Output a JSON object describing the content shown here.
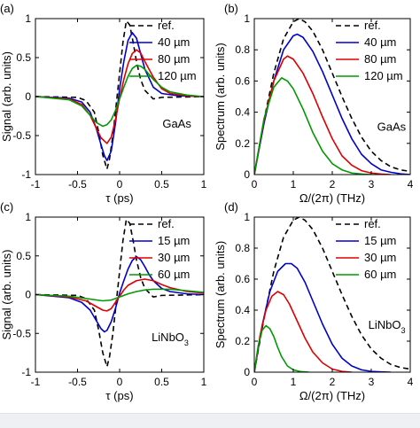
{
  "chart_data": [
    {
      "id": "a",
      "panel_label": "(a)",
      "type": "line",
      "xlabel": "τ (ps)",
      "ylabel": "Signal (arb. units)",
      "xlim": [
        -1,
        1
      ],
      "ylim": [
        -1,
        1
      ],
      "xticks": [
        -1,
        -0.5,
        0,
        0.5,
        1
      ],
      "xtick_labels": [
        "-1",
        "-0.5",
        "0",
        "0.5",
        "1"
      ],
      "yticks": [
        -1,
        -0.5,
        0,
        0.5,
        1
      ],
      "ytick_labels": [
        "-1",
        "-0.5",
        "0",
        "0.5",
        "1"
      ],
      "annotation": "GaAs",
      "legend_position": "top-right",
      "series": [
        {
          "name": "ref.",
          "color": "#000000",
          "dashed": true,
          "x": [
            -1.0,
            -0.5,
            -0.4,
            -0.3,
            -0.25,
            -0.2,
            -0.15,
            -0.12,
            -0.08,
            -0.04,
            0.0,
            0.04,
            0.08,
            0.12,
            0.16,
            0.2,
            0.25,
            0.3,
            0.4,
            0.5,
            1.0
          ],
          "y": [
            0.0,
            -0.01,
            -0.05,
            -0.2,
            -0.45,
            -0.75,
            -0.93,
            -0.8,
            -0.5,
            -0.1,
            0.3,
            0.7,
            0.97,
            0.92,
            0.7,
            0.45,
            0.22,
            0.08,
            -0.03,
            -0.01,
            0.0
          ]
        },
        {
          "name": "40 µm",
          "color": "#0000cc",
          "dashed": false,
          "x": [
            -1.0,
            -0.6,
            -0.45,
            -0.35,
            -0.28,
            -0.22,
            -0.18,
            -0.15,
            -0.1,
            -0.05,
            0.0,
            0.05,
            0.1,
            0.15,
            0.2,
            0.25,
            0.3,
            0.4,
            0.5,
            0.7,
            1.0
          ],
          "y": [
            0.0,
            -0.02,
            -0.07,
            -0.2,
            -0.4,
            -0.62,
            -0.76,
            -0.82,
            -0.7,
            -0.35,
            0.1,
            0.45,
            0.72,
            0.82,
            0.75,
            0.55,
            0.35,
            0.12,
            0.04,
            0.01,
            0.0
          ]
        },
        {
          "name": "80 µm",
          "color": "#dd0000",
          "dashed": false,
          "x": [
            -1.0,
            -0.6,
            -0.45,
            -0.35,
            -0.28,
            -0.22,
            -0.15,
            -0.1,
            -0.05,
            0.0,
            0.05,
            0.1,
            0.15,
            0.2,
            0.25,
            0.3,
            0.4,
            0.5,
            0.6,
            0.8,
            1.0
          ],
          "y": [
            0.0,
            -0.03,
            -0.1,
            -0.24,
            -0.4,
            -0.53,
            -0.6,
            -0.52,
            -0.3,
            -0.02,
            0.22,
            0.42,
            0.55,
            0.6,
            0.56,
            0.45,
            0.25,
            0.1,
            0.04,
            0.01,
            0.0
          ]
        },
        {
          "name": "120 µm",
          "color": "#009900",
          "dashed": false,
          "x": [
            -1.0,
            -0.6,
            -0.45,
            -0.35,
            -0.28,
            -0.2,
            -0.15,
            -0.1,
            -0.05,
            0.0,
            0.05,
            0.1,
            0.15,
            0.2,
            0.25,
            0.3,
            0.4,
            0.5,
            0.6,
            0.8,
            1.0
          ],
          "y": [
            0.0,
            -0.04,
            -0.12,
            -0.24,
            -0.33,
            -0.38,
            -0.36,
            -0.3,
            -0.18,
            -0.03,
            0.12,
            0.26,
            0.36,
            0.4,
            0.39,
            0.35,
            0.22,
            0.12,
            0.06,
            0.02,
            0.0
          ]
        }
      ]
    },
    {
      "id": "b",
      "panel_label": "(b)",
      "type": "line",
      "xlabel": "Ω/(2π) (THz)",
      "ylabel": "Spectrum (arb. units)",
      "xlim": [
        0,
        4
      ],
      "ylim": [
        0,
        1
      ],
      "xticks": [
        0,
        1,
        2,
        3,
        4
      ],
      "xtick_labels": [
        "0",
        "1",
        "2",
        "3",
        "4"
      ],
      "yticks": [
        0,
        0.2,
        0.4,
        0.6,
        0.8,
        1
      ],
      "ytick_labels": [
        "0",
        "0.2",
        "0.4",
        "0.6",
        "0.8",
        "1"
      ],
      "annotation": "GaAs",
      "legend_position": "top-right",
      "series": [
        {
          "name": "ref.",
          "color": "#000000",
          "dashed": true,
          "x": [
            0,
            0.25,
            0.5,
            0.75,
            1.0,
            1.15,
            1.3,
            1.5,
            1.75,
            2.0,
            2.25,
            2.5,
            2.75,
            3.0,
            3.25,
            3.5,
            3.75,
            4.0
          ],
          "y": [
            0.0,
            0.35,
            0.65,
            0.87,
            0.98,
            1.0,
            0.98,
            0.92,
            0.8,
            0.65,
            0.5,
            0.36,
            0.24,
            0.15,
            0.09,
            0.05,
            0.03,
            0.02
          ]
        },
        {
          "name": "40 µm",
          "color": "#0000cc",
          "dashed": false,
          "x": [
            0,
            0.25,
            0.5,
            0.75,
            1.0,
            1.1,
            1.25,
            1.5,
            1.75,
            2.0,
            2.25,
            2.5,
            2.75,
            3.0,
            3.25,
            3.5,
            3.75,
            4.0
          ],
          "y": [
            0.0,
            0.33,
            0.6,
            0.8,
            0.89,
            0.9,
            0.88,
            0.79,
            0.66,
            0.51,
            0.36,
            0.23,
            0.13,
            0.07,
            0.03,
            0.015,
            0.005,
            0.0
          ]
        },
        {
          "name": "80 µm",
          "color": "#dd0000",
          "dashed": false,
          "x": [
            0,
            0.25,
            0.5,
            0.75,
            0.85,
            1.0,
            1.25,
            1.5,
            1.75,
            2.0,
            2.25,
            2.5,
            2.75,
            3.0,
            3.25,
            3.5
          ],
          "y": [
            0.0,
            0.35,
            0.6,
            0.74,
            0.76,
            0.74,
            0.65,
            0.52,
            0.37,
            0.23,
            0.12,
            0.06,
            0.025,
            0.01,
            0.003,
            0.0
          ]
        },
        {
          "name": "120 µm",
          "color": "#009900",
          "dashed": false,
          "x": [
            0,
            0.25,
            0.5,
            0.7,
            0.85,
            1.0,
            1.25,
            1.5,
            1.75,
            2.0,
            2.25,
            2.5,
            2.75,
            3.0
          ],
          "y": [
            0.0,
            0.36,
            0.56,
            0.62,
            0.6,
            0.55,
            0.42,
            0.27,
            0.15,
            0.07,
            0.03,
            0.01,
            0.003,
            0.0
          ]
        }
      ]
    },
    {
      "id": "c",
      "panel_label": "(c)",
      "type": "line",
      "xlabel": "τ (ps)",
      "ylabel": "Signal (arb. units)",
      "xlim": [
        -1,
        1
      ],
      "ylim": [
        -1,
        1
      ],
      "xticks": [
        -1,
        -0.5,
        0,
        0.5,
        1
      ],
      "xtick_labels": [
        "-1",
        "-0.5",
        "0",
        "0.5",
        "1"
      ],
      "yticks": [
        -1,
        -0.5,
        0,
        0.5,
        1
      ],
      "ytick_labels": [
        "-1",
        "-0.5",
        "0",
        "0.5",
        "1"
      ],
      "annotation": "LiNbO",
      "annotation_subscript": "3",
      "legend_position": "top-right",
      "series": [
        {
          "name": "ref.",
          "color": "#000000",
          "dashed": true,
          "x": [
            -1.0,
            -0.5,
            -0.4,
            -0.3,
            -0.25,
            -0.2,
            -0.15,
            -0.12,
            -0.08,
            -0.04,
            0.0,
            0.04,
            0.08,
            0.12,
            0.16,
            0.2,
            0.25,
            0.3,
            0.4,
            0.5,
            1.0
          ],
          "y": [
            0.0,
            -0.01,
            -0.05,
            -0.2,
            -0.45,
            -0.75,
            -0.93,
            -0.8,
            -0.5,
            -0.1,
            0.3,
            0.7,
            0.97,
            0.92,
            0.7,
            0.45,
            0.22,
            0.08,
            -0.03,
            -0.01,
            0.0
          ]
        },
        {
          "name": "15 µm",
          "color": "#0000cc",
          "dashed": false,
          "x": [
            -1.0,
            -0.6,
            -0.45,
            -0.35,
            -0.28,
            -0.22,
            -0.18,
            -0.15,
            -0.1,
            -0.05,
            0.0,
            0.05,
            0.1,
            0.15,
            0.2,
            0.25,
            0.3,
            0.35,
            0.4,
            0.5,
            0.6,
            0.8,
            1.0
          ],
          "y": [
            0.0,
            -0.04,
            -0.1,
            -0.2,
            -0.33,
            -0.44,
            -0.48,
            -0.46,
            -0.35,
            -0.18,
            0.02,
            0.18,
            0.33,
            0.44,
            0.49,
            0.45,
            0.36,
            0.26,
            0.18,
            0.08,
            0.04,
            0.01,
            0.0
          ]
        },
        {
          "name": "30 µm",
          "color": "#dd0000",
          "dashed": false,
          "x": [
            -1.0,
            -0.6,
            -0.4,
            -0.3,
            -0.2,
            -0.15,
            -0.1,
            -0.05,
            0.0,
            0.05,
            0.1,
            0.2,
            0.3,
            0.4,
            0.5,
            0.6,
            0.8,
            1.0
          ],
          "y": [
            0.0,
            -0.03,
            -0.08,
            -0.14,
            -0.2,
            -0.21,
            -0.18,
            -0.1,
            -0.02,
            0.06,
            0.12,
            0.18,
            0.2,
            0.18,
            0.13,
            0.09,
            0.04,
            0.02
          ]
        },
        {
          "name": "60 µm",
          "color": "#009900",
          "dashed": false,
          "x": [
            -1.0,
            -0.6,
            -0.4,
            -0.2,
            -0.1,
            0.0,
            0.1,
            0.2,
            0.3,
            0.4,
            0.6,
            0.8,
            1.0
          ],
          "y": [
            0.0,
            -0.02,
            -0.05,
            -0.08,
            -0.07,
            -0.03,
            0.01,
            0.04,
            0.06,
            0.07,
            0.07,
            0.05,
            0.03
          ]
        }
      ]
    },
    {
      "id": "d",
      "panel_label": "(d)",
      "type": "line",
      "xlabel": "Ω/(2π) (THz)",
      "ylabel": "Spectrum (arb. units)",
      "xlim": [
        0,
        4
      ],
      "ylim": [
        0,
        1
      ],
      "xticks": [
        0,
        1,
        2,
        3,
        4
      ],
      "xtick_labels": [
        "0",
        "1",
        "2",
        "3",
        "4"
      ],
      "yticks": [
        0,
        0.2,
        0.4,
        0.6,
        0.8,
        1
      ],
      "ytick_labels": [
        "0",
        "0.2",
        "0.4",
        "0.6",
        "0.8",
        "1"
      ],
      "annotation": "LiNbO",
      "annotation_subscript": "3",
      "legend_position": "top-right",
      "series": [
        {
          "name": "ref.",
          "color": "#000000",
          "dashed": true,
          "x": [
            0,
            0.25,
            0.5,
            0.75,
            1.0,
            1.15,
            1.3,
            1.5,
            1.75,
            2.0,
            2.25,
            2.5,
            2.75,
            3.0,
            3.25,
            3.5,
            3.75,
            4.0
          ],
          "y": [
            0.0,
            0.35,
            0.65,
            0.87,
            0.98,
            1.0,
            0.98,
            0.92,
            0.8,
            0.65,
            0.5,
            0.36,
            0.24,
            0.15,
            0.09,
            0.05,
            0.03,
            0.02
          ]
        },
        {
          "name": "15 µm",
          "color": "#0000cc",
          "dashed": false,
          "x": [
            0,
            0.2,
            0.4,
            0.6,
            0.8,
            0.95,
            1.1,
            1.3,
            1.5,
            1.75,
            2.0,
            2.25,
            2.5,
            2.75,
            3.0,
            3.25,
            3.5
          ],
          "y": [
            0.0,
            0.3,
            0.52,
            0.65,
            0.7,
            0.7,
            0.67,
            0.58,
            0.46,
            0.31,
            0.18,
            0.09,
            0.04,
            0.015,
            0.005,
            0.002,
            0.0
          ]
        },
        {
          "name": "30 µm",
          "color": "#dd0000",
          "dashed": false,
          "x": [
            0,
            0.15,
            0.3,
            0.45,
            0.6,
            0.75,
            0.9,
            1.1,
            1.3,
            1.5,
            1.75,
            2.0,
            2.25,
            2.5
          ],
          "y": [
            0.0,
            0.24,
            0.4,
            0.49,
            0.52,
            0.5,
            0.44,
            0.33,
            0.22,
            0.13,
            0.06,
            0.02,
            0.005,
            0.0
          ]
        },
        {
          "name": "60 µm",
          "color": "#009900",
          "dashed": false,
          "x": [
            0,
            0.1,
            0.2,
            0.3,
            0.4,
            0.5,
            0.6,
            0.7,
            0.85,
            1.0,
            1.2,
            1.4
          ],
          "y": [
            0.0,
            0.17,
            0.27,
            0.3,
            0.28,
            0.23,
            0.16,
            0.1,
            0.04,
            0.015,
            0.003,
            0.0
          ]
        }
      ]
    }
  ]
}
